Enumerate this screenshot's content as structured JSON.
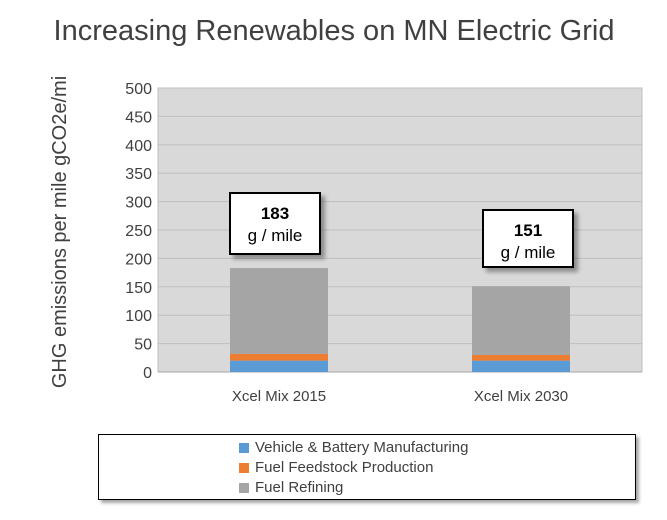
{
  "chart_data": {
    "type": "bar",
    "stacked": true,
    "title": "Increasing Renewables on MN Electric Grid",
    "xlabel": "",
    "ylabel": "GHG emissions per mile gCO2e/mi",
    "categories": [
      "Xcel Mix 2015",
      "Xcel Mix 2030"
    ],
    "series": [
      {
        "name": "Vehicle & Battery Manufacturing",
        "color": "#5b9bd5",
        "values": [
          20,
          20
        ]
      },
      {
        "name": "Fuel Feedstock Production",
        "color": "#ed7d31",
        "values": [
          12,
          10
        ]
      },
      {
        "name": "Fuel Refining",
        "color": "#a5a5a5",
        "values": [
          151,
          121
        ]
      }
    ],
    "ylim": [
      0,
      500
    ],
    "yticks": [
      0,
      50,
      100,
      150,
      200,
      250,
      300,
      350,
      400,
      450,
      500
    ],
    "grid": true,
    "legend": "bottom",
    "annotations": [
      {
        "category": "Xcel Mix 2015",
        "value": "183",
        "unit": "g / mile"
      },
      {
        "category": "Xcel Mix 2030",
        "value": "151",
        "unit": "g / mile"
      }
    ]
  }
}
